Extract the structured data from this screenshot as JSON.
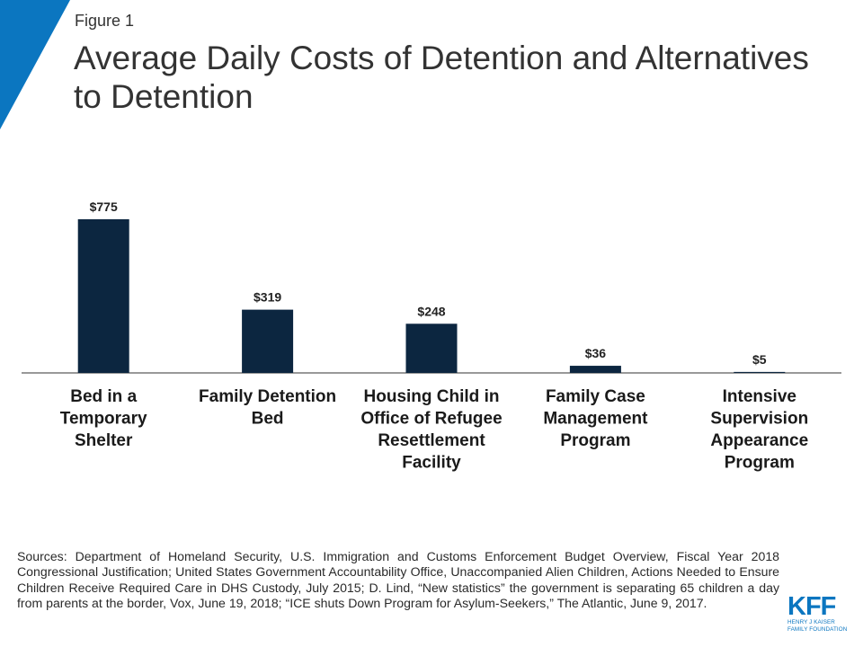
{
  "header": {
    "figure_label": "Figure 1",
    "title": "Average Daily Costs of Detention and Alternatives to Detention"
  },
  "colors": {
    "bar": "#0c2640",
    "accent": "#0b76c0",
    "axis": "#333333"
  },
  "chart_data": {
    "type": "bar",
    "title": "Average Daily Costs of Detention and Alternatives to Detention",
    "xlabel": "",
    "ylabel": "",
    "ylim": [
      0,
      775
    ],
    "grid": false,
    "categories": [
      [
        "Bed in a",
        "Temporary",
        "Shelter"
      ],
      [
        "Family Detention",
        "Bed"
      ],
      [
        "Housing Child in",
        "Office of Refugee",
        "Resettlement",
        "Facility"
      ],
      [
        "Family Case",
        "Management",
        "Program"
      ],
      [
        "Intensive",
        "Supervision",
        "Appearance",
        "Program"
      ]
    ],
    "values": [
      775,
      319,
      248,
      36,
      5
    ],
    "value_labels": [
      "$775",
      "$319",
      "$248",
      "$36",
      "$5"
    ]
  },
  "sources": "Sources: Department of Homeland Security, U.S. Immigration and Customs Enforcement Budget Overview, Fiscal Year 2018 Congressional Justification; United States Government Accountability Office, Unaccompanied Alien Children, Actions Needed to Ensure Children Receive Required Care in DHS Custody, July 2015; D. Lind, “New statistics” the government is separating 65 children a day from parents at the border, Vox, June 19, 2018; “ICE shuts Down Program for Asylum-Seekers,” The Atlantic, June 9, 2017.",
  "logo": {
    "mark": "KFF",
    "line1": "HENRY J KAISER",
    "line2": "FAMILY FOUNDATION"
  }
}
